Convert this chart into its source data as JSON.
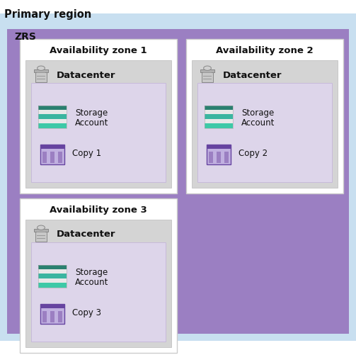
{
  "title": "Primary region",
  "zrs_label": "ZRS",
  "bg_white": "#ffffff",
  "bg_light_blue": "#c8dff0",
  "bg_purple": "#9b7fc2",
  "bg_zone_white": "#ffffff",
  "bg_datacenter_gray": "#d4d4d4",
  "bg_storage_lavender": "#ddd5ea",
  "title_color": "#111111",
  "zones": [
    {
      "label": "Availability zone 1",
      "copy": "Copy 1",
      "col": 0,
      "row": 0
    },
    {
      "label": "Availability zone 2",
      "copy": "Copy 2",
      "col": 1,
      "row": 0
    },
    {
      "label": "Availability zone 3",
      "copy": "Copy 3",
      "col": 0,
      "row": 1
    }
  ],
  "storage_colors": [
    "#3ec9a7",
    "#ffffff",
    "#3ab5a0",
    "#ffffff",
    "#2a8a7a"
  ],
  "copy_purple_light": "#c0b0e0",
  "copy_purple_mid": "#9b7fc2",
  "copy_purple_dark": "#6644a0",
  "dc_icon_color": "#888888",
  "dc_icon_outline": "#666666"
}
